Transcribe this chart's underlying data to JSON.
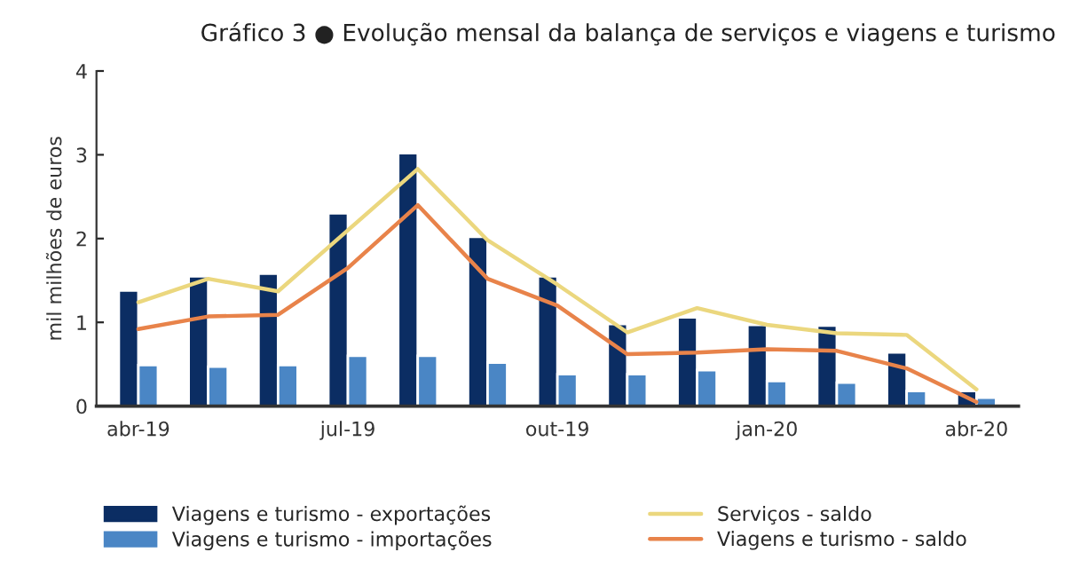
{
  "chart_data": {
    "type": "bar",
    "title": "Gráfico 3 ● Evolução mensal da balança de serviços e viagens e turismo",
    "ylabel": "mil milhões de euros",
    "categories": [
      "abr-19",
      null,
      null,
      "jul-19",
      null,
      null,
      "out-19",
      null,
      null,
      "jan-20",
      null,
      null,
      "abr-20"
    ],
    "series": [
      {
        "name": "Viagens e turismo - exportações",
        "color": "#0b2d63",
        "values": [
          1.38,
          1.55,
          1.58,
          2.3,
          3.02,
          2.02,
          1.55,
          0.98,
          1.06,
          0.97,
          0.96,
          0.64,
          0.18
        ]
      },
      {
        "name": "Viagens e turismo - importações",
        "color": "#4a86c5",
        "values": [
          0.49,
          0.47,
          0.49,
          0.6,
          0.6,
          0.52,
          0.38,
          0.38,
          0.43,
          0.3,
          0.28,
          0.18,
          0.1
        ]
      },
      {
        "name": "Serviços - saldo",
        "type": "line",
        "color": "#ebd77e",
        "values": [
          1.24,
          1.52,
          1.37,
          2.1,
          2.83,
          1.98,
          1.45,
          0.88,
          1.17,
          0.97,
          0.87,
          0.85,
          0.2
        ]
      },
      {
        "name": "Viagens e turismo - saldo",
        "type": "line",
        "color": "#e8834a",
        "values": [
          0.92,
          1.07,
          1.09,
          1.65,
          2.4,
          1.52,
          1.2,
          0.62,
          0.64,
          0.68,
          0.66,
          0.45,
          0.05
        ]
      }
    ],
    "ylim": [
      0,
      4
    ],
    "yticks": [
      0,
      1,
      2,
      3,
      4
    ],
    "grid": false,
    "legend": "bottom",
    "marker": "none",
    "line_style": "solid"
  }
}
